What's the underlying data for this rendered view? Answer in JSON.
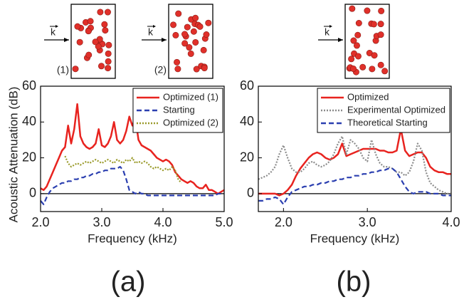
{
  "chart_data": [
    {
      "type": "line",
      "panel_label": "(a)",
      "x_label": "Frequency (kHz)",
      "y_label": "Acoustic Attenuation (dB)",
      "insets": [
        {
          "label": "(1)",
          "wave_label": "k"
        },
        {
          "label": "(2)",
          "wave_label": "k"
        }
      ],
      "xlim": [
        2,
        5
      ],
      "ylim": [
        -10,
        60
      ],
      "xticks": [
        {
          "value": 2,
          "label": "2.0"
        },
        {
          "value": 3,
          "label": "3.0"
        },
        {
          "value": 4,
          "label": "4.0"
        },
        {
          "value": 5,
          "label": "5.0"
        }
      ],
      "yticks": [
        0,
        20,
        40,
        60
      ],
      "reference_line": 0,
      "legend": "upper right",
      "x": [
        2.0,
        2.05,
        2.1,
        2.15,
        2.2,
        2.25,
        2.3,
        2.35,
        2.4,
        2.45,
        2.5,
        2.55,
        2.6,
        2.65,
        2.7,
        2.75,
        2.8,
        2.85,
        2.9,
        2.95,
        3.0,
        3.05,
        3.1,
        3.15,
        3.2,
        3.25,
        3.3,
        3.35,
        3.4,
        3.45,
        3.5,
        3.55,
        3.6,
        3.65,
        3.7,
        3.75,
        3.8,
        3.85,
        3.9,
        3.95,
        4.0,
        4.05,
        4.1,
        4.15,
        4.2,
        4.25,
        4.3,
        4.35,
        4.4,
        4.45,
        4.5,
        4.55,
        4.6,
        4.65,
        4.7,
        4.75,
        4.8,
        4.85,
        4.9,
        4.95,
        5.0
      ],
      "series": [
        {
          "name": "Optimized (1)",
          "color": "#e8231f",
          "style": "solid",
          "values": [
            3,
            2,
            4,
            8,
            12,
            16,
            20,
            24,
            26,
            38,
            28,
            36,
            50,
            32,
            28,
            26,
            25,
            26,
            28,
            36,
            27,
            26,
            28,
            32,
            40,
            30,
            28,
            30,
            35,
            43,
            38,
            42,
            30,
            27,
            26,
            25,
            24,
            22,
            20,
            19,
            18,
            19,
            18,
            16,
            12,
            10,
            8,
            7,
            6,
            7,
            6,
            4,
            3,
            3,
            5,
            2,
            2,
            1,
            0,
            1,
            2
          ]
        },
        {
          "name": "Starting",
          "color": "#2b3fb0",
          "style": "dashed",
          "values": [
            -4,
            -6,
            -2,
            1,
            3,
            4,
            5,
            6,
            6,
            7,
            7,
            8,
            8,
            9,
            9,
            10,
            10,
            11,
            11,
            12,
            12,
            13,
            13,
            14,
            14,
            14,
            15,
            13,
            8,
            2,
            1,
            0,
            1,
            0,
            0,
            -1,
            -1,
            -1,
            -1,
            -1,
            -1,
            -1,
            -1,
            -1,
            -1,
            -1,
            -1,
            -1,
            -1,
            -1,
            -1,
            -1,
            -1,
            -1,
            -1,
            -1,
            -1,
            -1,
            0,
            0,
            0
          ]
        },
        {
          "name": "Optimized (2)",
          "color": "#9a9a2a",
          "style": "dotted",
          "values": [
            null,
            null,
            null,
            null,
            null,
            null,
            null,
            null,
            21,
            17,
            15,
            16,
            17,
            16,
            17,
            18,
            17,
            18,
            19,
            18,
            17,
            18,
            19,
            18,
            17,
            19,
            18,
            17,
            19,
            18,
            20,
            17,
            18,
            17,
            18,
            17,
            15,
            14,
            15,
            14,
            13,
            14,
            13,
            15,
            13,
            8,
            6,
            null,
            null,
            null,
            null,
            null,
            null,
            null,
            null,
            null,
            null,
            null,
            null,
            null,
            null
          ]
        }
      ]
    },
    {
      "type": "line",
      "panel_label": "(b)",
      "x_label": "Frequency (kHz)",
      "insets": [
        {
          "wave_label": "k"
        }
      ],
      "xlim": [
        1.7,
        4
      ],
      "ylim": [
        -10,
        60
      ],
      "xticks": [
        {
          "value": 2,
          "label": "2.0"
        },
        {
          "value": 3,
          "label": "3.0"
        },
        {
          "value": 4,
          "label": "4.0"
        }
      ],
      "yticks": [
        0,
        20,
        40,
        60
      ],
      "reference_line": 0,
      "legend": "upper right",
      "x": [
        1.7,
        1.75,
        1.8,
        1.85,
        1.9,
        1.95,
        2.0,
        2.05,
        2.1,
        2.15,
        2.2,
        2.25,
        2.3,
        2.35,
        2.4,
        2.45,
        2.5,
        2.55,
        2.6,
        2.65,
        2.7,
        2.75,
        2.8,
        2.85,
        2.9,
        2.95,
        3.0,
        3.05,
        3.1,
        3.15,
        3.2,
        3.25,
        3.3,
        3.35,
        3.4,
        3.45,
        3.5,
        3.55,
        3.6,
        3.65,
        3.7,
        3.75,
        3.8,
        3.85,
        3.9,
        3.95,
        4.0
      ],
      "series": [
        {
          "name": "Optimized",
          "color": "#e8231f",
          "style": "solid",
          "values": [
            0,
            0,
            0,
            0,
            0,
            -1,
            0,
            2,
            5,
            10,
            14,
            17,
            20,
            22,
            23,
            22,
            20,
            19,
            20,
            22,
            28,
            21,
            22,
            23,
            24,
            25,
            25,
            25,
            25,
            24,
            24,
            23,
            23,
            24,
            36,
            24,
            21,
            22,
            23,
            23,
            20,
            15,
            13,
            12,
            12,
            11,
            11
          ]
        },
        {
          "name": "Experimental Optimized",
          "color": "#8c8c8c",
          "style": "dotted",
          "values": [
            8,
            9,
            10,
            12,
            15,
            22,
            27,
            20,
            14,
            12,
            12,
            14,
            17,
            18,
            16,
            15,
            16,
            18,
            22,
            28,
            32,
            22,
            30,
            28,
            25,
            20,
            18,
            30,
            22,
            17,
            15,
            15,
            14,
            12,
            12,
            10,
            12,
            18,
            28,
            24,
            12,
            6,
            4,
            2,
            1,
            0,
            0
          ]
        },
        {
          "name": "Theoretical Starting",
          "color": "#2b3fb0",
          "style": "dashed",
          "values": [
            -4,
            -4,
            -3,
            -3,
            -2,
            -3,
            -6,
            -2,
            1,
            2,
            3,
            4,
            4,
            5,
            5,
            6,
            6,
            7,
            7,
            8,
            8,
            9,
            9,
            10,
            10,
            11,
            11,
            12,
            12,
            13,
            13,
            14,
            14,
            12,
            8,
            4,
            1,
            0,
            1,
            1,
            1,
            0,
            0,
            0,
            -1,
            -1,
            -1
          ]
        }
      ]
    }
  ]
}
